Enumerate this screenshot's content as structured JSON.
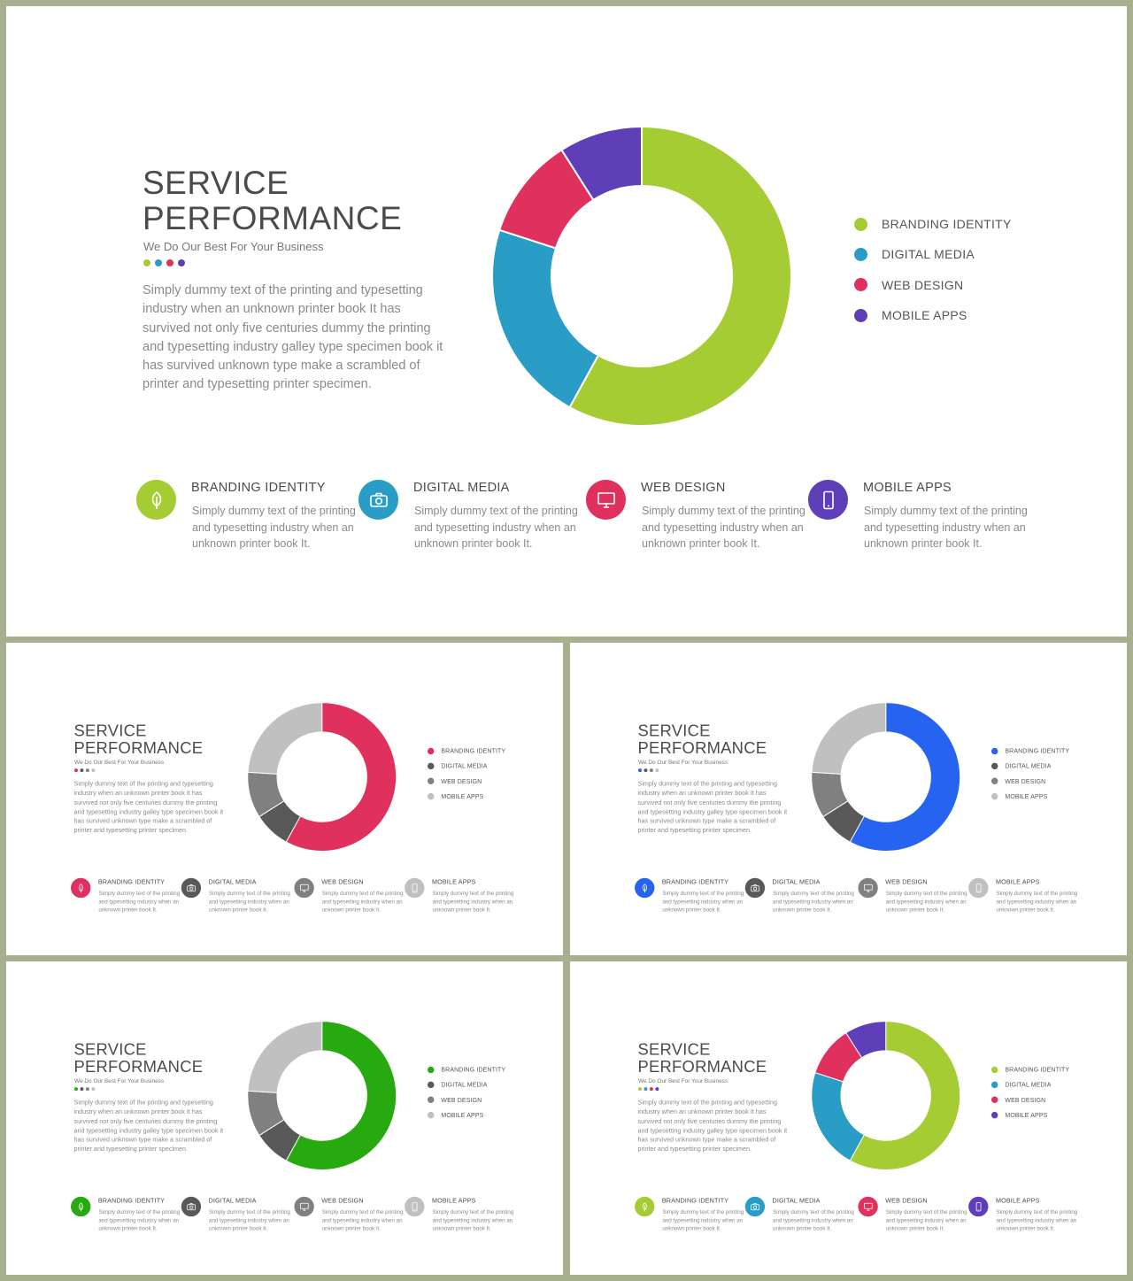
{
  "slides": [
    {
      "title_line1": "SERVICE",
      "title_line2": "PERFORMANCE",
      "subtitle": "We Do Our Best For Your Business",
      "body": "Simply dummy  text of the printing  and typesetting industry when an unknown printer book It has survived not only five centuries  dummy   the printing and typesetting industry galley type specimen book it has survived unknown type make  a scrambled  of printer  and typesetting printer  specimen.",
      "colors": [
        "#a6cc34",
        "#2a9dc6",
        "#e0305e",
        "#5f3fb8"
      ],
      "legend": [
        "BRANDING IDENTITY",
        "DIGITAL MEDIA",
        "WEB DESIGN",
        "MOBILE APPS"
      ],
      "features": [
        {
          "title": "BRANDING  IDENTITY",
          "text": "Simply dummy text of the printing  and typesetting industry when an unknown printer book It.",
          "icon": "leaf-icon"
        },
        {
          "title": "DIGITAL  MEDIA",
          "text": "Simply dummy text of the printing  and typesetting industry when an unknown printer book It.",
          "icon": "camera-icon"
        },
        {
          "title": "WEB DESIGN",
          "text": "Simply dummy text of the printing  and typesetting industry when an unknown printer book It.",
          "icon": "monitor-icon"
        },
        {
          "title": "MOBILE APPS",
          "text": "Simply dummy text of the printing  and typesetting industry when an unknown printer book It.",
          "icon": "phone-icon"
        }
      ]
    },
    {
      "title_line1": "SERVICE",
      "title_line2": "PERFORMANCE",
      "subtitle": "We Do Our Best For Your Business",
      "body": "Simply dummy  text of the printing  and typesetting industry when an unknown printer book It has survived not only five centuries  dummy   the printing and typesetting industry galley type specimen book it has survived unknown type make  a scrambled  of printer  and typesetting printer  specimen.",
      "colors": [
        "#e0305e",
        "#595959",
        "#808080",
        "#c0c0c0"
      ],
      "legend": [
        "BRANDING IDENTITY",
        "DIGITAL MEDIA",
        "WEB DESIGN",
        "MOBILE APPS"
      ],
      "features": [
        {
          "title": "BRANDING  IDENTITY",
          "text": "Simply dummy text of the printing  and typesetting industry when an unknown printer book It.",
          "icon": "leaf-icon"
        },
        {
          "title": "DIGITAL  MEDIA",
          "text": "Simply dummy text of the printing  and typesetting industry when an unknown printer book It.",
          "icon": "camera-icon"
        },
        {
          "title": "WEB DESIGN",
          "text": "Simply dummy text of the printing  and typesetting industry when an unknown printer book It.",
          "icon": "monitor-icon"
        },
        {
          "title": "MOBILE APPS",
          "text": "Simply dummy text of the printing  and typesetting industry when an unknown printer book It.",
          "icon": "phone-icon"
        }
      ]
    },
    {
      "title_line1": "SERVICE",
      "title_line2": "PERFORMANCE",
      "subtitle": "We Do Our Best For Your Business",
      "body": "Simply dummy  text of the printing  and typesetting industry when an unknown printer book It has survived not only five centuries  dummy   the printing and typesetting industry galley type specimen book it has survived unknown type make  a scrambled  of printer  and typesetting printer  specimen.",
      "colors": [
        "#2563f0",
        "#595959",
        "#808080",
        "#c0c0c0"
      ],
      "legend": [
        "BRANDING IDENTITY",
        "DIGITAL MEDIA",
        "WEB DESIGN",
        "MOBILE APPS"
      ],
      "features": [
        {
          "title": "BRANDING  IDENTITY",
          "text": "Simply dummy text of the printing  and typesetting industry when an unknown printer book It.",
          "icon": "leaf-icon"
        },
        {
          "title": "DIGITAL  MEDIA",
          "text": "Simply dummy text of the printing  and typesetting industry when an unknown printer book It.",
          "icon": "camera-icon"
        },
        {
          "title": "WEB DESIGN",
          "text": "Simply dummy text of the printing  and typesetting industry when an unknown printer book It.",
          "icon": "monitor-icon"
        },
        {
          "title": "MOBILE APPS",
          "text": "Simply dummy text of the printing  and typesetting industry when an unknown printer book It.",
          "icon": "phone-icon"
        }
      ]
    },
    {
      "title_line1": "SERVICE",
      "title_line2": "PERFORMANCE",
      "subtitle": "We Do Our Best For Your Business",
      "body": "Simply dummy  text of the printing  and typesetting industry when an unknown printer book It has survived not only five centuries  dummy   the printing and typesetting industry galley type specimen book it has survived unknown type make  a scrambled  of printer  and typesetting printer  specimen.",
      "colors": [
        "#26aa10",
        "#595959",
        "#808080",
        "#c0c0c0"
      ],
      "legend": [
        "BRANDING IDENTITY",
        "DIGITAL MEDIA",
        "WEB DESIGN",
        "MOBILE APPS"
      ],
      "features": [
        {
          "title": "BRANDING  IDENTITY",
          "text": "Simply dummy text of the printing  and typesetting industry when an unknown printer book It.",
          "icon": "leaf-icon"
        },
        {
          "title": "DIGITAL  MEDIA",
          "text": "Simply dummy text of the printing  and typesetting industry when an unknown printer book It.",
          "icon": "camera-icon"
        },
        {
          "title": "WEB DESIGN",
          "text": "Simply dummy text of the printing  and typesetting industry when an unknown printer book It.",
          "icon": "monitor-icon"
        },
        {
          "title": "MOBILE APPS",
          "text": "Simply dummy text of the printing  and typesetting industry when an unknown printer book It.",
          "icon": "phone-icon"
        }
      ]
    },
    {
      "title_line1": "SERVICE",
      "title_line2": "PERFORMANCE",
      "subtitle": "We Do Our Best For Your Business",
      "body": "Simply dummy  text of the printing  and typesetting industry when an unknown printer book It has survived not only five centuries  dummy   the printing and typesetting industry galley type specimen book it has survived unknown type make  a scrambled  of printer  and typesetting printer  specimen.",
      "colors": [
        "#a6cc34",
        "#2a9dc6",
        "#e0305e",
        "#5f3fb8"
      ],
      "legend": [
        "BRANDING IDENTITY",
        "DIGITAL MEDIA",
        "WEB DESIGN",
        "MOBILE APPS"
      ],
      "features": [
        {
          "title": "BRANDING  IDENTITY",
          "text": "Simply dummy text of the printing  and typesetting industry when an unknown printer book It.",
          "icon": "leaf-icon"
        },
        {
          "title": "DIGITAL  MEDIA",
          "text": "Simply dummy text of the printing  and typesetting industry when an unknown printer book It.",
          "icon": "camera-icon"
        },
        {
          "title": "WEB DESIGN",
          "text": "Simply dummy text of the printing  and typesetting industry when an unknown printer book It.",
          "icon": "monitor-icon"
        },
        {
          "title": "MOBILE APPS",
          "text": "Simply dummy text of the printing  and typesetting industry when an unknown printer book It.",
          "icon": "phone-icon"
        }
      ]
    }
  ],
  "chart_data": [
    {
      "type": "pie",
      "categories": [
        "BRANDING IDENTITY",
        "DIGITAL MEDIA",
        "WEB DESIGN",
        "MOBILE APPS"
      ],
      "values": [
        58,
        22,
        11,
        9
      ]
    },
    {
      "type": "pie",
      "categories": [
        "BRANDING IDENTITY",
        "DIGITAL MEDIA",
        "WEB DESIGN",
        "MOBILE APPS"
      ],
      "values": [
        58,
        8,
        10,
        24
      ]
    },
    {
      "type": "pie",
      "categories": [
        "BRANDING IDENTITY",
        "DIGITAL MEDIA",
        "WEB DESIGN",
        "MOBILE APPS"
      ],
      "values": [
        58,
        8,
        10,
        24
      ]
    },
    {
      "type": "pie",
      "categories": [
        "BRANDING IDENTITY",
        "DIGITAL MEDIA",
        "WEB DESIGN",
        "MOBILE APPS"
      ],
      "values": [
        58,
        8,
        10,
        24
      ]
    },
    {
      "type": "pie",
      "categories": [
        "BRANDING IDENTITY",
        "DIGITAL MEDIA",
        "WEB DESIGN",
        "MOBILE APPS"
      ],
      "values": [
        58,
        22,
        11,
        9
      ]
    }
  ]
}
